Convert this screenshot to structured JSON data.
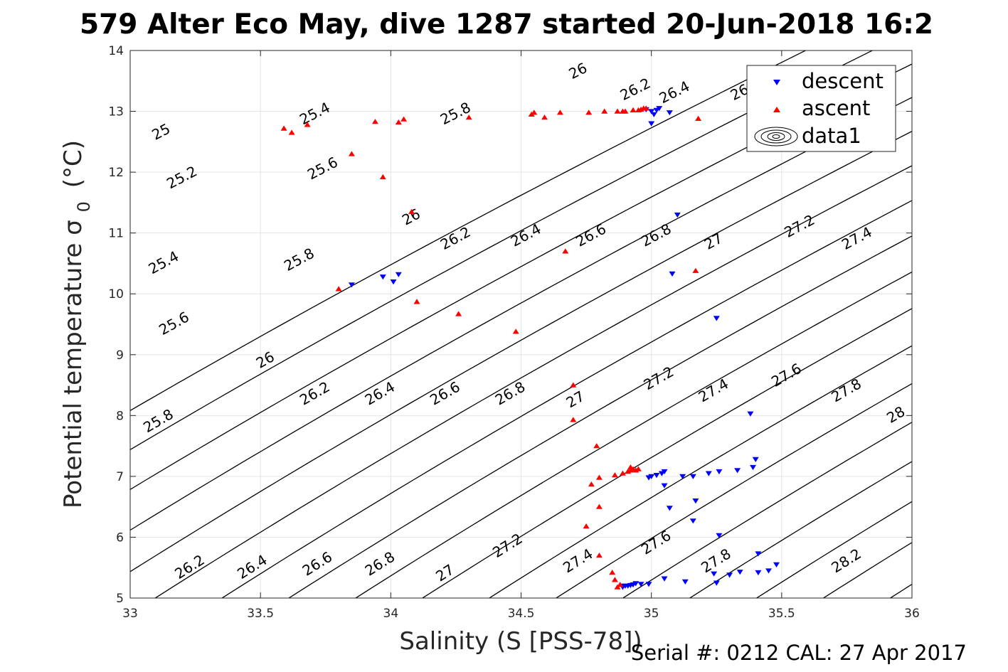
{
  "chart_data": {
    "type": "scatter",
    "title": "579 Alter Eco May, dive 1287 started 20-Jun-2018 16:2",
    "xlabel": "Salinity (S [PSS-78])",
    "ylabel": "Potential temperature σ",
    "ylabel_sub": "0",
    "ylabel_unit": "(°C)",
    "footer": "Serial #: 0212  CAL: 27 Apr 2017",
    "xlim": [
      33,
      36
    ],
    "ylim": [
      5,
      14
    ],
    "xticks": [
      33,
      33.5,
      34,
      34.5,
      35,
      35.5,
      36
    ],
    "xtick_labels": [
      "33",
      "33.5",
      "34",
      "34.5",
      "35",
      "35.5",
      "36"
    ],
    "yticks": [
      5,
      6,
      7,
      8,
      9,
      10,
      11,
      12,
      13,
      14
    ],
    "ytick_labels": [
      "5",
      "6",
      "7",
      "8",
      "9",
      "10",
      "11",
      "12",
      "13",
      "14"
    ],
    "grid": true,
    "legend_position": "top-right",
    "legend": [
      {
        "label": "descent",
        "color": "#0000ff",
        "marker": "triangle-down"
      },
      {
        "label": "ascent",
        "color": "#ff0000",
        "marker": "triangle-up"
      },
      {
        "label": "data1",
        "color": "#000000",
        "marker": "contour"
      }
    ],
    "contours": {
      "levels": [
        25,
        25.2,
        25.4,
        25.6,
        25.8,
        26,
        26.2,
        26.4,
        26.6,
        26.8,
        27,
        27.2,
        27.4,
        27.6,
        27.8,
        28,
        28.2
      ],
      "labels": [
        {
          "text": "25",
          "x": 33.12,
          "y": 12.65
        },
        {
          "text": "25.2",
          "x": 33.2,
          "y": 11.9
        },
        {
          "text": "25.4",
          "x": 33.13,
          "y": 10.5
        },
        {
          "text": "25.6",
          "x": 33.17,
          "y": 9.5
        },
        {
          "text": "25.8",
          "x": 33.11,
          "y": 7.9
        },
        {
          "text": "26.2",
          "x": 33.23,
          "y": 5.5
        },
        {
          "text": "25.4",
          "x": 33.71,
          "y": 12.95
        },
        {
          "text": "25.6",
          "x": 33.74,
          "y": 12.05
        },
        {
          "text": "25.8",
          "x": 33.65,
          "y": 10.55
        },
        {
          "text": "26",
          "x": 33.52,
          "y": 8.9
        },
        {
          "text": "26.4",
          "x": 33.47,
          "y": 5.5
        },
        {
          "text": "26.2",
          "x": 33.71,
          "y": 8.35
        },
        {
          "text": "26.6",
          "x": 33.72,
          "y": 5.55
        },
        {
          "text": "26.4",
          "x": 33.96,
          "y": 8.35
        },
        {
          "text": "26.8",
          "x": 33.96,
          "y": 5.55
        },
        {
          "text": "25.8",
          "x": 34.25,
          "y": 12.95
        },
        {
          "text": "26",
          "x": 34.08,
          "y": 11.25
        },
        {
          "text": "26.2",
          "x": 34.25,
          "y": 10.9
        },
        {
          "text": "26.6",
          "x": 34.21,
          "y": 8.35
        },
        {
          "text": "27",
          "x": 34.21,
          "y": 5.4
        },
        {
          "text": "26",
          "x": 34.72,
          "y": 13.65
        },
        {
          "text": "26.4",
          "x": 34.52,
          "y": 10.95
        },
        {
          "text": "26.8",
          "x": 34.46,
          "y": 8.35
        },
        {
          "text": "27.2",
          "x": 34.45,
          "y": 5.85
        },
        {
          "text": "26.2",
          "x": 34.94,
          "y": 13.35
        },
        {
          "text": "26.6",
          "x": 34.77,
          "y": 10.95
        },
        {
          "text": "27",
          "x": 34.71,
          "y": 8.25
        },
        {
          "text": "27.4",
          "x": 34.72,
          "y": 5.6
        },
        {
          "text": "26.4",
          "x": 35.09,
          "y": 13.3
        },
        {
          "text": "26",
          "x": 35.34,
          "y": 13.3
        },
        {
          "text": "26.8",
          "x": 35.02,
          "y": 10.95
        },
        {
          "text": "27",
          "x": 35.24,
          "y": 10.85
        },
        {
          "text": "27.2",
          "x": 35.03,
          "y": 8.6
        },
        {
          "text": "27.4",
          "x": 35.24,
          "y": 8.4
        },
        {
          "text": "27.6",
          "x": 35.02,
          "y": 5.9
        },
        {
          "text": "27.8",
          "x": 35.25,
          "y": 5.6
        },
        {
          "text": "27.2",
          "x": 35.57,
          "y": 11.1
        },
        {
          "text": "27.4",
          "x": 35.79,
          "y": 10.9
        },
        {
          "text": "27.6",
          "x": 35.52,
          "y": 8.65
        },
        {
          "text": "27.8",
          "x": 35.75,
          "y": 8.4
        },
        {
          "text": "28",
          "x": 35.94,
          "y": 8.0
        },
        {
          "text": "28.2",
          "x": 35.75,
          "y": 5.6
        }
      ]
    },
    "series": [
      {
        "name": "descent",
        "color": "#0000ff",
        "marker": "triangle-down",
        "points": [
          [
            34.98,
            13.03
          ],
          [
            35.0,
            13.0
          ],
          [
            35.01,
            12.95
          ],
          [
            35.03,
            13.05
          ],
          [
            35.02,
            13.02
          ],
          [
            35.07,
            12.98
          ],
          [
            35.0,
            12.8
          ],
          [
            35.1,
            11.3
          ],
          [
            33.85,
            10.15
          ],
          [
            33.97,
            10.28
          ],
          [
            34.01,
            10.2
          ],
          [
            34.03,
            10.32
          ],
          [
            35.08,
            10.33
          ],
          [
            35.25,
            9.6
          ],
          [
            35.38,
            8.03
          ],
          [
            35.4,
            7.28
          ],
          [
            35.39,
            7.15
          ],
          [
            35.33,
            7.1
          ],
          [
            35.26,
            7.08
          ],
          [
            35.22,
            7.05
          ],
          [
            35.16,
            7.0
          ],
          [
            35.12,
            7.0
          ],
          [
            35.05,
            7.08
          ],
          [
            35.04,
            7.05
          ],
          [
            35.02,
            7.02
          ],
          [
            35.0,
            7.0
          ],
          [
            34.99,
            6.98
          ],
          [
            35.05,
            6.85
          ],
          [
            35.07,
            6.48
          ],
          [
            35.17,
            6.6
          ],
          [
            35.16,
            6.27
          ],
          [
            35.26,
            6.03
          ],
          [
            35.41,
            5.73
          ],
          [
            35.48,
            5.55
          ],
          [
            35.45,
            5.45
          ],
          [
            35.41,
            5.42
          ],
          [
            35.34,
            5.43
          ],
          [
            35.3,
            5.38
          ],
          [
            35.24,
            5.4
          ],
          [
            35.25,
            5.25
          ],
          [
            35.13,
            5.27
          ],
          [
            35.05,
            5.32
          ],
          [
            34.99,
            5.23
          ],
          [
            34.96,
            5.23
          ],
          [
            34.94,
            5.24
          ],
          [
            34.93,
            5.22
          ],
          [
            34.92,
            5.21
          ],
          [
            34.91,
            5.2
          ],
          [
            34.9,
            5.2
          ],
          [
            34.89,
            5.2
          ],
          [
            34.89,
            5.18
          ]
        ]
      },
      {
        "name": "ascent",
        "color": "#ff0000",
        "marker": "triangle-up",
        "points": [
          [
            33.59,
            12.72
          ],
          [
            33.62,
            12.65
          ],
          [
            33.68,
            12.78
          ],
          [
            33.94,
            12.83
          ],
          [
            34.03,
            12.82
          ],
          [
            34.05,
            12.87
          ],
          [
            34.3,
            12.9
          ],
          [
            34.54,
            12.95
          ],
          [
            34.55,
            12.98
          ],
          [
            34.59,
            12.9
          ],
          [
            34.65,
            12.98
          ],
          [
            34.76,
            12.98
          ],
          [
            34.82,
            13.0
          ],
          [
            34.87,
            13.0
          ],
          [
            34.89,
            13.0
          ],
          [
            34.9,
            13.0
          ],
          [
            34.93,
            13.02
          ],
          [
            34.95,
            13.02
          ],
          [
            34.96,
            13.03
          ],
          [
            34.97,
            13.05
          ],
          [
            34.98,
            13.05
          ],
          [
            35.18,
            12.88
          ],
          [
            33.85,
            12.3
          ],
          [
            33.97,
            11.92
          ],
          [
            34.08,
            11.35
          ],
          [
            33.8,
            10.08
          ],
          [
            34.1,
            9.87
          ],
          [
            34.26,
            9.67
          ],
          [
            34.48,
            9.38
          ],
          [
            34.67,
            10.7
          ],
          [
            35.17,
            10.38
          ],
          [
            34.7,
            8.5
          ],
          [
            34.7,
            7.93
          ],
          [
            34.79,
            7.5
          ],
          [
            34.92,
            7.15
          ],
          [
            34.93,
            7.12
          ],
          [
            34.94,
            7.1
          ],
          [
            34.95,
            7.12
          ],
          [
            34.92,
            7.1
          ],
          [
            34.91,
            7.08
          ],
          [
            34.89,
            7.05
          ],
          [
            34.86,
            7.02
          ],
          [
            34.8,
            6.98
          ],
          [
            34.77,
            6.87
          ],
          [
            34.8,
            6.5
          ],
          [
            34.75,
            6.18
          ],
          [
            34.8,
            5.7
          ],
          [
            34.85,
            5.42
          ],
          [
            34.86,
            5.3
          ],
          [
            34.88,
            5.22
          ],
          [
            34.87,
            5.18
          ]
        ]
      }
    ]
  }
}
